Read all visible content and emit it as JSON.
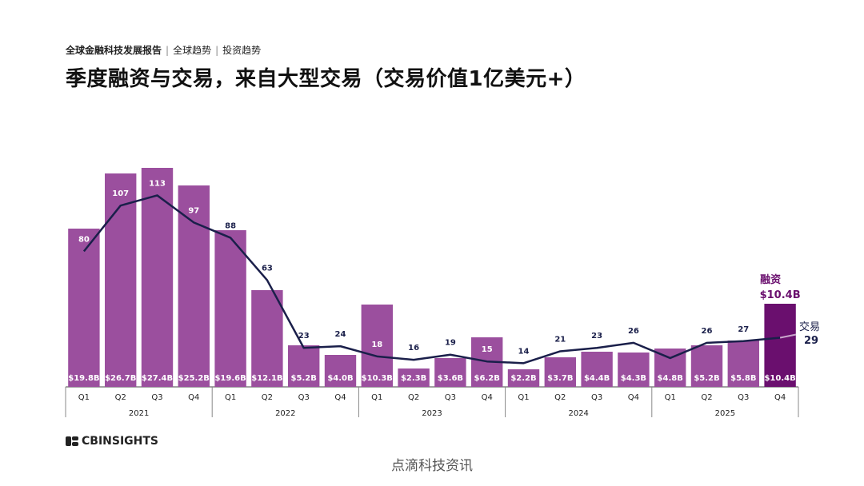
{
  "header": {
    "report": "全球金融科技发展报告",
    "section1": "全球趋势",
    "section2": "投资趋势"
  },
  "title": "季度融资与交易，来自大型交易（交易价值1亿美元+）",
  "chart_data": {
    "type": "bar",
    "categories": [
      "Q1",
      "Q2",
      "Q3",
      "Q4",
      "Q1",
      "Q2",
      "Q3",
      "Q4",
      "Q1",
      "Q2",
      "Q3",
      "Q4",
      "Q1",
      "Q2",
      "Q3",
      "Q4",
      "Q1",
      "Q2",
      "Q3",
      "Q4"
    ],
    "years": [
      "2021",
      "2022",
      "2023",
      "2024",
      "2025"
    ],
    "series": [
      {
        "name": "融资",
        "values": [
          19.8,
          26.7,
          27.4,
          25.2,
          19.6,
          12.1,
          5.2,
          4.0,
          10.3,
          2.3,
          3.6,
          6.2,
          2.2,
          3.7,
          4.4,
          4.3,
          4.8,
          5.2,
          5.8,
          10.4
        ],
        "labels": [
          "$19.8B",
          "$26.7B",
          "$27.4B",
          "$25.2B",
          "$19.6B",
          "$12.1B",
          "$5.2B",
          "$4.0B",
          "$10.3B",
          "$2.3B",
          "$3.6B",
          "$6.2B",
          "$2.2B",
          "$3.7B",
          "$4.4B",
          "$4.3B",
          "$4.8B",
          "$5.2B",
          "$5.8B",
          "$10.4B"
        ]
      },
      {
        "name": "交易",
        "values": [
          80,
          107,
          113,
          97,
          88,
          63,
          23,
          24,
          18,
          16,
          19,
          15,
          14,
          21,
          23,
          26,
          17,
          26,
          27,
          29
        ]
      }
    ],
    "callouts": {
      "funding_label": "融资",
      "funding_value": "$10.4B",
      "deals_label": "交易",
      "deals_value": "29"
    },
    "colors": {
      "bar": "#9b4f9e",
      "bar_last": "#6a0f6e",
      "line": "#1a1f4a",
      "accent_text": "#6a0f6e"
    }
  },
  "footer": {
    "logo": "CBINSIGHTS",
    "watermark": "点滴科技资讯"
  }
}
